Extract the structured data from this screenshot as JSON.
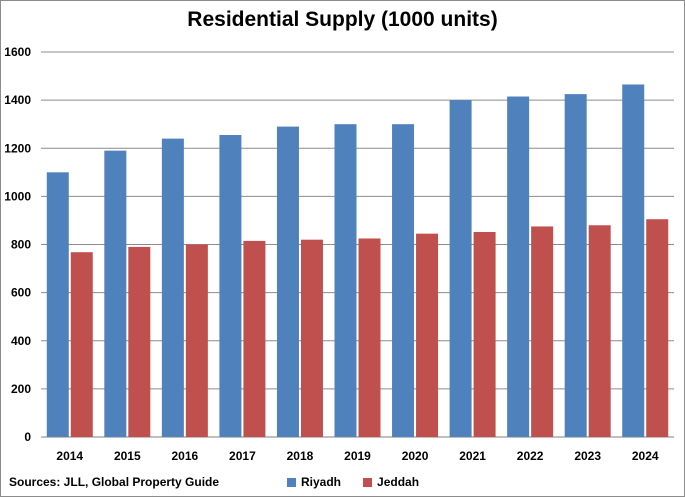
{
  "chart_data": {
    "type": "bar",
    "title": "Residential Supply (1000 units)",
    "xlabel": "",
    "ylabel": "",
    "ylim": [
      0,
      1600
    ],
    "yticks": [
      0,
      200,
      400,
      600,
      800,
      1000,
      1200,
      1400,
      1600
    ],
    "grid": true,
    "legend_position": "bottom",
    "categories": [
      "2014",
      "2015",
      "2016",
      "2017",
      "2018",
      "2019",
      "2020",
      "2021",
      "2022",
      "2023",
      "2024"
    ],
    "series": [
      {
        "name": "Riyadh",
        "color": "#4f81bd",
        "values": [
          1100,
          1190,
          1240,
          1255,
          1290,
          1300,
          1300,
          1400,
          1415,
          1425,
          1465
        ]
      },
      {
        "name": "Jeddah",
        "color": "#c0504d",
        "values": [
          768,
          790,
          800,
          815,
          820,
          825,
          845,
          852,
          875,
          880,
          905
        ]
      }
    ]
  },
  "source_note": "Sources: JLL, Global Property Guide"
}
